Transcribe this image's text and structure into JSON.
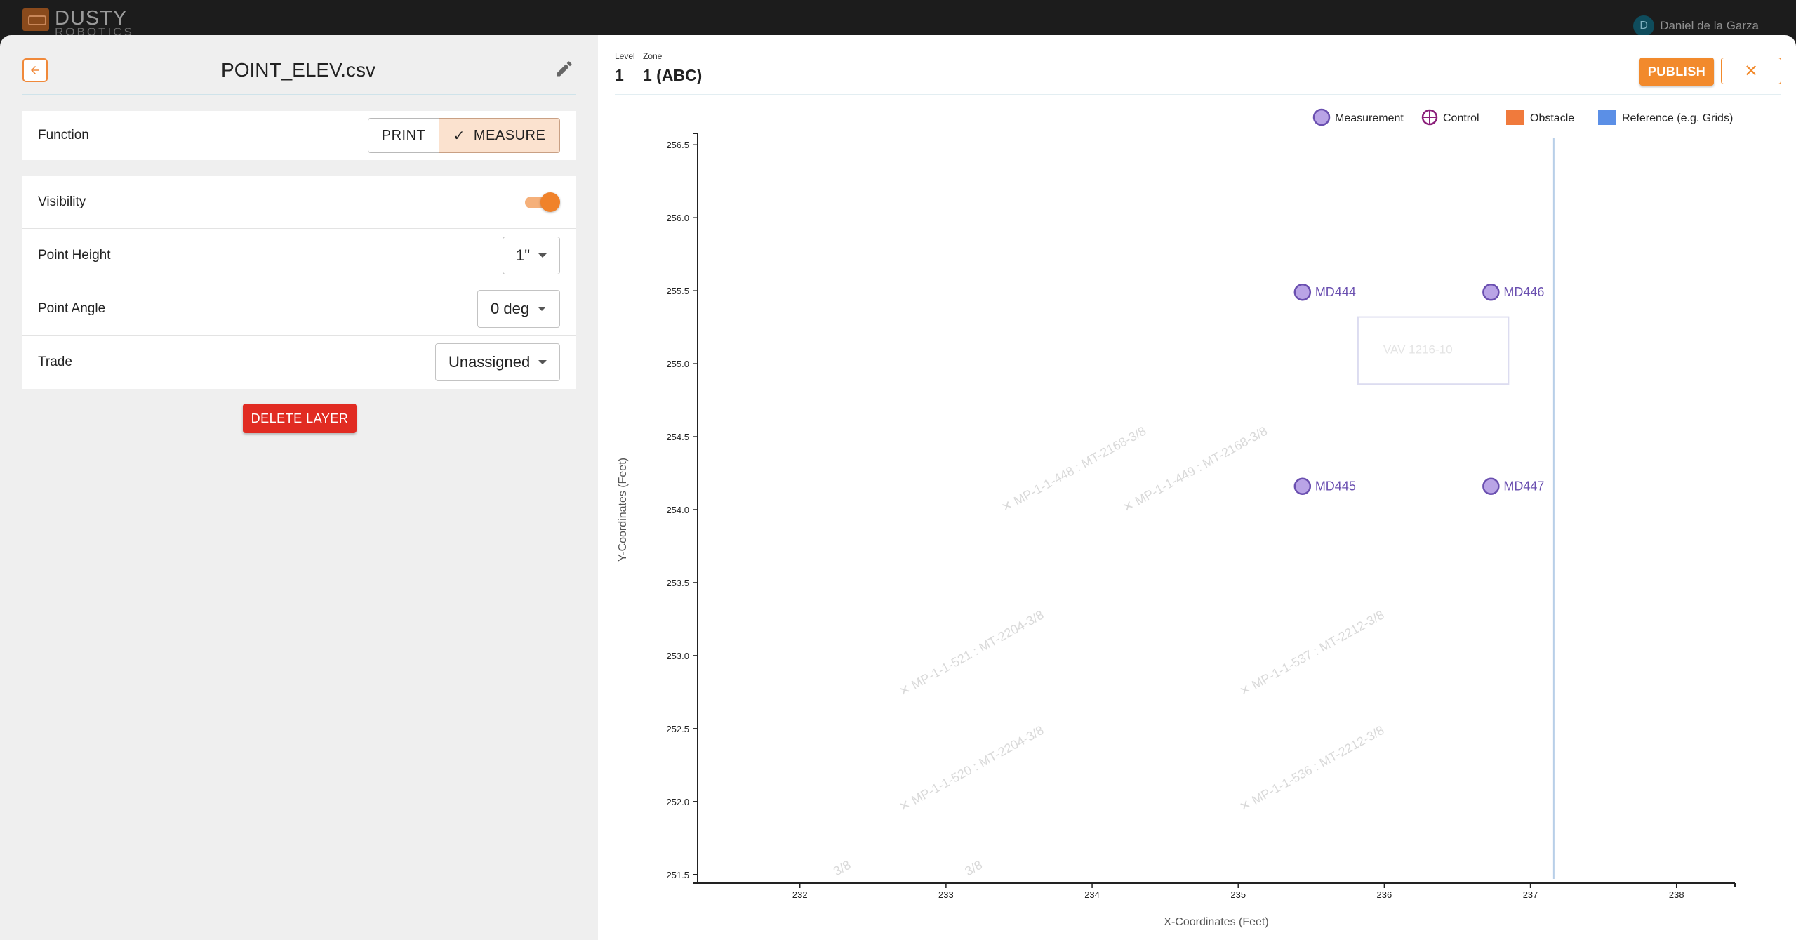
{
  "app": {
    "logo_text": "DUSTY",
    "logo_subtext": "ROBOTICS",
    "user_name": "Daniel de la Garza",
    "user_initial": "D"
  },
  "layer": {
    "file_name": "POINT_ELEV.csv",
    "function": {
      "label": "Function",
      "options": [
        "PRINT",
        "MEASURE"
      ],
      "selected": "MEASURE",
      "check_icon": "✓"
    },
    "visibility": {
      "label": "Visibility",
      "on": true
    },
    "point_height": {
      "label": "Point Height",
      "value": "1\""
    },
    "point_angle": {
      "label": "Point Angle",
      "value": "0 deg"
    },
    "trade": {
      "label": "Trade",
      "value": "Unassigned"
    },
    "delete_label": "DELETE LAYER"
  },
  "view": {
    "level_caption": "Level",
    "level_value": "1",
    "zone_caption": "Zone",
    "zone_value": "1 (ABC)",
    "publish_label": "PUBLISH",
    "close_icon": "✕"
  },
  "colors": {
    "accent": "#f28a2c",
    "measurement": "#b9a4e6",
    "measurement_stroke": "#6a4fb0",
    "control": "#8b1f7a",
    "obstacle": "#f07a3c",
    "reference": "#5b8fe6",
    "danger": "#e12b22"
  },
  "chart_data": {
    "type": "scatter",
    "xlabel": "X-Coordinates (Feet)",
    "ylabel": "Y-Coordinates (Feet)",
    "xlim": [
      231.3,
      238.4
    ],
    "ylim": [
      251.47,
      256.53
    ],
    "x_ticks": [
      232,
      233,
      234,
      235,
      236,
      237,
      238
    ],
    "y_ticks": [
      251.5,
      252.0,
      252.5,
      253.0,
      253.5,
      254.0,
      254.5,
      255.0,
      255.5,
      256.0,
      256.5
    ],
    "legend": [
      {
        "name": "Measurement",
        "marker": "circle"
      },
      {
        "name": "Control",
        "marker": "crosshair"
      },
      {
        "name": "Obstacle",
        "marker": "square"
      },
      {
        "name": "Reference (e.g. Grids)",
        "marker": "square"
      }
    ],
    "measurement_points": [
      {
        "label": "MD444",
        "x": 235.44,
        "y": 255.49
      },
      {
        "label": "MD446",
        "x": 236.73,
        "y": 255.49
      },
      {
        "label": "MD445",
        "x": 235.44,
        "y": 254.16
      },
      {
        "label": "MD447",
        "x": 236.73,
        "y": 254.16
      }
    ],
    "reference_lines": [
      {
        "x": 237.16
      }
    ],
    "obstacles": [
      {
        "label": "VAV 1216-10",
        "x0": 235.82,
        "x1": 236.85,
        "y0": 254.86,
        "y1": 255.32
      }
    ],
    "faded_labels": [
      {
        "text": "✕  MP-1-1-448 : MT-2168-3/8",
        "x": 233.4,
        "y": 253.98
      },
      {
        "text": "✕  MP-1-1-449 : MT-2168-3/8",
        "x": 234.23,
        "y": 253.98
      },
      {
        "text": "✕  MP-1-1-521 : MT-2204-3/8",
        "x": 232.7,
        "y": 252.72
      },
      {
        "text": "✕  MP-1-1-537 : MT-2212-3/8",
        "x": 235.03,
        "y": 252.72
      },
      {
        "text": "✕  MP-1-1-520 : MT-2204-3/8",
        "x": 232.7,
        "y": 251.93
      },
      {
        "text": "✕  MP-1-1-536 : MT-2212-3/8",
        "x": 235.03,
        "y": 251.93
      },
      {
        "text": "3/8",
        "x": 232.25,
        "y": 251.49
      },
      {
        "text": "3/8",
        "x": 233.15,
        "y": 251.49
      }
    ]
  }
}
